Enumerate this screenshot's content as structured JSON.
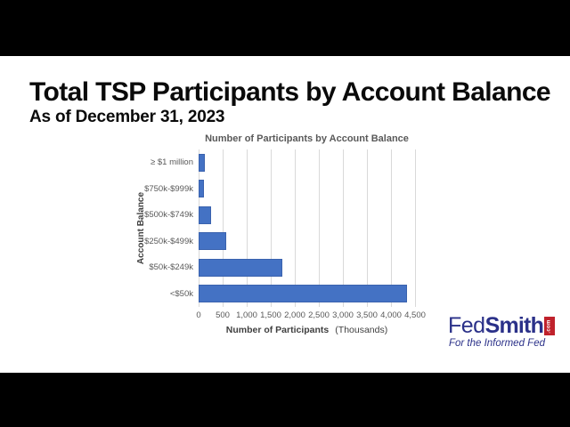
{
  "page": {
    "title": "Total TSP Participants by Account Balance",
    "subtitle": "As of December 31, 2023"
  },
  "chart_data": {
    "type": "bar",
    "orientation": "horizontal",
    "title": "Number of Participants by Account Balance",
    "categories": [
      "≥ $1 million",
      "$750k-$999k",
      "$500k-$749k",
      "$250k-$499k",
      "$50k-$249k",
      "<$50k"
    ],
    "values": [
      130,
      115,
      255,
      570,
      1740,
      4330
    ],
    "unit": "thousands of participants",
    "xlabel": "Number of Participants",
    "xlabel_note": "(Thousands)",
    "ylabel": "Account Balance",
    "xlim": [
      0,
      4500
    ],
    "xtick_values": [
      0,
      500,
      1000,
      1500,
      2000,
      2500,
      3000,
      3500,
      4000,
      4500
    ],
    "xtick_labels": [
      "0",
      "500",
      "1,000",
      "1,500",
      "2,000",
      "2,500",
      "3,000",
      "3,500",
      "4,000",
      "4,500"
    ],
    "grid": true,
    "legend": false,
    "colors": {
      "bar_fill": "#4472C4",
      "bar_border": "#3A62AE",
      "gridline": "#D9D9D9",
      "tick_label": "#595959",
      "chart_title": "#595959",
      "axis_title": "#404040"
    }
  },
  "logo": {
    "fed": "Fed",
    "smith": "Smith",
    "com": ".com",
    "tagline": "For the Informed Fed",
    "colors": {
      "navy": "#2B3189",
      "red": "#C0222C"
    }
  }
}
